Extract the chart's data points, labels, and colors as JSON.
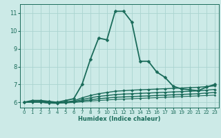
{
  "bg_color": "#cceae7",
  "grid_color": "#aad4d0",
  "line_color": "#1a6b5a",
  "marker_color": "#1a6b5a",
  "xlabel": "Humidex (Indice chaleur)",
  "ylim": [
    5.7,
    11.5
  ],
  "xlim": [
    -0.5,
    23.5
  ],
  "yticks": [
    6,
    7,
    8,
    9,
    10,
    11
  ],
  "xticks": [
    0,
    1,
    2,
    3,
    4,
    5,
    6,
    7,
    8,
    9,
    10,
    11,
    12,
    13,
    14,
    15,
    16,
    17,
    18,
    19,
    20,
    21,
    22,
    23
  ],
  "curves": [
    {
      "x": [
        0,
        1,
        2,
        3,
        4,
        5,
        6,
        7,
        8,
        9,
        10,
        11,
        12,
        13,
        14,
        15,
        16,
        17,
        18,
        19,
        20,
        21,
        22,
        23
      ],
      "y": [
        6.0,
        6.1,
        6.1,
        6.05,
        6.0,
        6.1,
        6.2,
        7.0,
        8.4,
        9.6,
        9.5,
        11.1,
        11.1,
        10.5,
        8.3,
        8.3,
        7.7,
        7.4,
        6.9,
        6.75,
        6.7,
        6.65,
        6.85,
        7.0
      ],
      "lw": 1.3,
      "ms": 2.5,
      "marker": "D"
    },
    {
      "x": [
        0,
        1,
        2,
        3,
        4,
        5,
        6,
        7,
        8,
        9,
        10,
        11,
        12,
        13,
        14,
        15,
        16,
        17,
        18,
        19,
        20,
        21,
        22,
        23
      ],
      "y": [
        6.0,
        6.05,
        6.05,
        6.0,
        5.98,
        6.02,
        6.08,
        6.25,
        6.38,
        6.48,
        6.55,
        6.62,
        6.65,
        6.68,
        6.7,
        6.72,
        6.74,
        6.76,
        6.78,
        6.8,
        6.82,
        6.84,
        6.88,
        6.92
      ],
      "lw": 1.0,
      "ms": 2.0,
      "marker": "D"
    },
    {
      "x": [
        0,
        1,
        2,
        3,
        4,
        5,
        6,
        7,
        8,
        9,
        10,
        11,
        12,
        13,
        14,
        15,
        16,
        17,
        18,
        19,
        20,
        21,
        22,
        23
      ],
      "y": [
        6.0,
        6.02,
        6.02,
        5.97,
        5.96,
        6.0,
        6.04,
        6.15,
        6.25,
        6.33,
        6.38,
        6.43,
        6.46,
        6.48,
        6.5,
        6.52,
        6.54,
        6.56,
        6.58,
        6.6,
        6.62,
        6.64,
        6.68,
        6.72
      ],
      "lw": 1.0,
      "ms": 2.0,
      "marker": "D"
    },
    {
      "x": [
        0,
        1,
        2,
        3,
        4,
        5,
        6,
        7,
        8,
        9,
        10,
        11,
        12,
        13,
        14,
        15,
        16,
        17,
        18,
        19,
        20,
        21,
        22,
        23
      ],
      "y": [
        6.0,
        6.01,
        6.01,
        5.96,
        5.95,
        5.98,
        6.01,
        6.08,
        6.14,
        6.2,
        6.24,
        6.28,
        6.3,
        6.32,
        6.34,
        6.36,
        6.38,
        6.4,
        6.42,
        6.44,
        6.46,
        6.48,
        6.52,
        6.55
      ],
      "lw": 1.0,
      "ms": 2.0,
      "marker": "D"
    },
    {
      "x": [
        0,
        1,
        2,
        3,
        4,
        5,
        6,
        7,
        8,
        9,
        10,
        11,
        12,
        13,
        14,
        15,
        16,
        17,
        18,
        19,
        20,
        21,
        22,
        23
      ],
      "y": [
        6.0,
        6.0,
        6.0,
        5.95,
        5.94,
        5.97,
        5.99,
        6.03,
        6.07,
        6.1,
        6.13,
        6.16,
        6.18,
        6.2,
        6.22,
        6.24,
        6.26,
        6.28,
        6.3,
        6.32,
        6.34,
        6.36,
        6.38,
        6.4
      ],
      "lw": 0.8,
      "ms": 1.5,
      "marker": "D"
    }
  ],
  "title_fontsize": 7,
  "xlabel_fontsize": 6,
  "tick_fontsize": 5,
  "ytick_fontsize": 6
}
